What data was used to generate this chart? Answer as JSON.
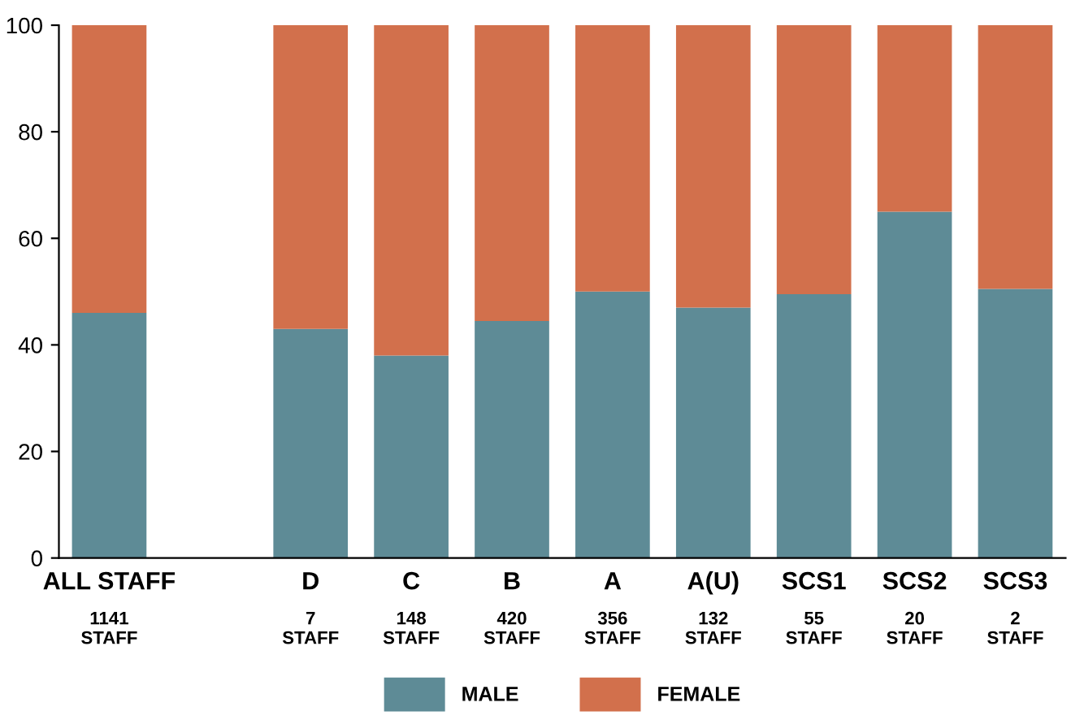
{
  "chart_data": {
    "type": "bar",
    "stacked": true,
    "categories": [
      "ALL STAFF\n1141\nSTAFF",
      null,
      "D\n7\nSTAFF",
      "C\n148\nSTAFF",
      "B\n420\nSTAFF",
      "A\n356\nSTAFF",
      "A(U)\n132\nSTAFF",
      "SCS1\n55\nSTAFF",
      "SCS2\n20\nSTAFF",
      "SCS3\n2\nSTAFF"
    ],
    "series": [
      {
        "name": "MALE",
        "color": "#5e8b96",
        "values": [
          46,
          null,
          43,
          38,
          44.5,
          50,
          47,
          49.5,
          65,
          50.5
        ]
      },
      {
        "name": "FEMALE",
        "color": "#d2704c",
        "values": [
          54,
          null,
          57,
          62,
          55.5,
          50,
          53,
          50.5,
          35,
          49.5
        ]
      }
    ],
    "ylim": [
      0,
      100
    ],
    "yticks": [
      0,
      20,
      40,
      60,
      80,
      100
    ],
    "grid": false,
    "legend": "bottom"
  }
}
